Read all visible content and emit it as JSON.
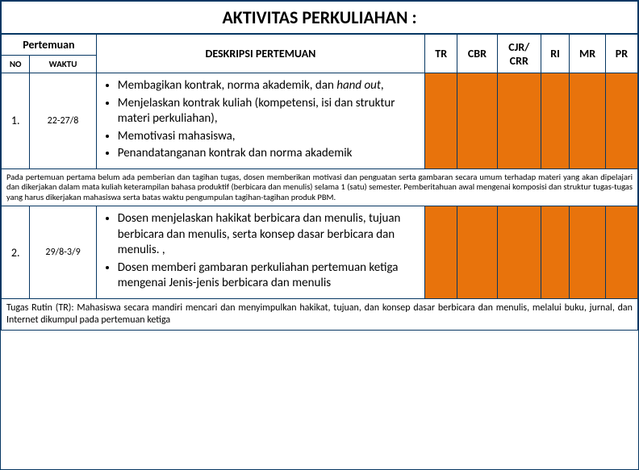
{
  "title": "AKTIVITAS PERKULIAHAN :",
  "header": {
    "pertemuan": "Pertemuan",
    "no": "NO",
    "waktu": "WAKTU",
    "deskripsi": "DESKRIPSI PERTEMUAN",
    "tr": "TR",
    "cbr": "CBR",
    "cjr": "CJR/ CRR",
    "ri": "RI",
    "mr": "MR",
    "pr": "PR"
  },
  "rows": [
    {
      "no": "1.",
      "waktu": "22-27/8",
      "bullets": [
        "Membagikan kontrak, norma akademik, dan <em>hand out</em>,",
        "Menjelaskan kontrak kuliah (kompetensi, isi dan struktur materi perkuliahan),",
        "Memotivasi mahasiswa,",
        "Penandatanganan kontrak dan norma akademik"
      ]
    },
    {
      "no": "2.",
      "waktu": "29/8-3/9",
      "bullets": [
        "Dosen menjelaskan hakikat berbicara dan menulis, tujuan berbicara dan menulis, serta konsep dasar berbicara dan menulis. ,",
        "Dosen memberi gambaran perkuliahan pertemuan ketiga mengenai Jenis-jenis berbicara dan menulis"
      ]
    }
  ],
  "para1": "Pada pertemuan pertama belum ada pemberian dan tagihan tugas, dosen memberikan  motivasi dan penguatan serta gambaran secara umum terhadap materi yang akan dipelajari dan dikerjakan dalam mata kuliah keterampilan bahasa produktif (berbicara dan menulis) selama 1 (satu) semester. Pemberitahuan awal mengenai komposisi dan struktur  tugas-tugas yang harus dikerjakan mahasiswa serta batas waktu pengumpulan tagihan-tagihan produk PBM.",
  "para2": "Tugas Rutin (TR): Mahasiswa secara mandiri mencari dan menyimpulkan hakikat, tujuan, dan konsep dasar berbicara dan menulis, melalui buku, jurnal, dan Internet dikumpul pada pertemuan ketiga",
  "colors": {
    "orange": "#e8730c",
    "border": "#073763"
  },
  "colwidths": {
    "no": 30,
    "waktu": 70,
    "desc": 346,
    "tr": 34,
    "cbr": 42,
    "cjr": 46,
    "ri": 30,
    "mr": 38,
    "pr": 34
  }
}
